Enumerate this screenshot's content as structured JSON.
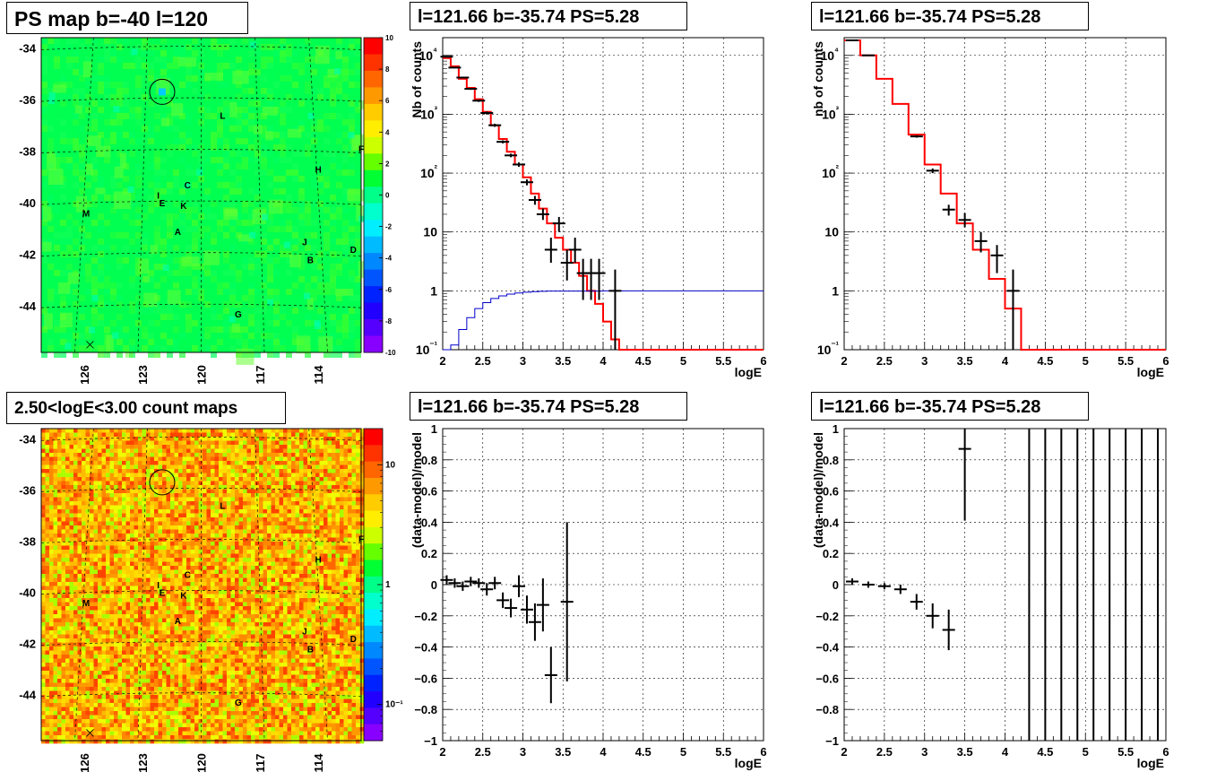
{
  "panel_titles": {
    "map1": "PS map b=-40 l=120",
    "map2": "2.50<logE<3.00 count maps",
    "spec1": "l=121.66 b=-35.74 PS=5.28",
    "spec2": "l=121.66 b=-35.74 PS=5.28",
    "res1": "l=121.66 b=-35.74 PS=5.28",
    "res2": "l=121.66 b=-35.74 PS=5.28"
  },
  "chart_data": [
    {
      "id": "map1",
      "type": "heatmap",
      "title": "PS map b=-40 l=120",
      "ytick_labels": [
        "-34",
        "-36",
        "-38",
        "-40",
        "-42",
        "-44"
      ],
      "yticks": [
        -34,
        -36,
        -38,
        -40,
        -42,
        -44
      ],
      "xtick_labels": [
        "126",
        "123",
        "120",
        "117",
        "114"
      ],
      "xticks": [
        126,
        123,
        120,
        117,
        114
      ],
      "ylim": [
        -45.8,
        -33.6
      ],
      "xlim": [
        128.2,
        111.8
      ],
      "colorbar": {
        "labels": [
          "10",
          "8",
          "6",
          "4",
          "2",
          "0",
          "-2",
          "-4",
          "-6",
          "-8",
          "-10"
        ],
        "range": [
          -10,
          10
        ],
        "scale": "linear"
      },
      "circle": {
        "l": 122,
        "b": -35.7
      },
      "sources": [
        {
          "name": "L",
          "l": 118.9,
          "b": -36.6
        },
        {
          "name": "F",
          "l": 111.8,
          "b": -37.9
        },
        {
          "name": "H",
          "l": 114.0,
          "b": -38.7
        },
        {
          "name": "C",
          "l": 120.7,
          "b": -39.3
        },
        {
          "name": "I",
          "l": 122.2,
          "b": -39.7
        },
        {
          "name": "E",
          "l": 122.0,
          "b": -40.0
        },
        {
          "name": "K",
          "l": 120.9,
          "b": -40.1
        },
        {
          "name": "M",
          "l": 125.9,
          "b": -40.4
        },
        {
          "name": "A",
          "l": 121.2,
          "b": -41.1
        },
        {
          "name": "J",
          "l": 114.7,
          "b": -41.5
        },
        {
          "name": "D",
          "l": 112.2,
          "b": -41.8
        },
        {
          "name": "B",
          "l": 114.4,
          "b": -42.2
        },
        {
          "name": "G",
          "l": 118.1,
          "b": -44.3
        }
      ],
      "marker_x": {
        "l": 125.7,
        "b": -45.5
      }
    },
    {
      "id": "map2",
      "type": "heatmap",
      "title": "2.50<logE<3.00 count maps",
      "ytick_labels": [
        "-34",
        "-36",
        "-38",
        "-40",
        "-42",
        "-44"
      ],
      "yticks": [
        -34,
        -36,
        -38,
        -40,
        -42,
        -44
      ],
      "xtick_labels": [
        "126",
        "123",
        "120",
        "117",
        "114"
      ],
      "xticks": [
        126,
        123,
        120,
        117,
        114
      ],
      "ylim": [
        -45.8,
        -33.6
      ],
      "xlim": [
        128.2,
        111.8
      ],
      "colorbar": {
        "labels": [
          "10",
          "1",
          "10⁻¹"
        ],
        "values": [
          10,
          1,
          0.1
        ],
        "range": [
          0.05,
          20
        ],
        "scale": "log"
      },
      "circle": {
        "l": 122,
        "b": -35.7
      },
      "sources": [
        {
          "name": "L",
          "l": 118.9,
          "b": -36.6
        },
        {
          "name": "F",
          "l": 111.8,
          "b": -37.9
        },
        {
          "name": "H",
          "l": 114.0,
          "b": -38.7
        },
        {
          "name": "C",
          "l": 120.7,
          "b": -39.3
        },
        {
          "name": "I",
          "l": 122.2,
          "b": -39.7
        },
        {
          "name": "E",
          "l": 122.0,
          "b": -40.0
        },
        {
          "name": "K",
          "l": 120.9,
          "b": -40.1
        },
        {
          "name": "M",
          "l": 125.9,
          "b": -40.4
        },
        {
          "name": "A",
          "l": 121.2,
          "b": -41.1
        },
        {
          "name": "J",
          "l": 114.7,
          "b": -41.5
        },
        {
          "name": "D",
          "l": 112.2,
          "b": -41.8
        },
        {
          "name": "B",
          "l": 114.4,
          "b": -42.2
        },
        {
          "name": "G",
          "l": 118.1,
          "b": -44.3
        }
      ],
      "marker_x": {
        "l": 125.7,
        "b": -45.5
      }
    },
    {
      "id": "spec1",
      "type": "line",
      "title": "l=121.66 b=-35.74 PS=5.28",
      "xlabel": "logE",
      "ylabel": "Nb of counts",
      "xlim": [
        2,
        6
      ],
      "ylim": [
        0.1,
        20000
      ],
      "yscale": "log",
      "grid": true,
      "xtick_labels": [
        "2",
        "2.5",
        "3",
        "3.5",
        "4",
        "4.5",
        "5",
        "5.5",
        "6"
      ],
      "ytick_labels": [
        "10⁻¹",
        "1",
        "10",
        "10²",
        "10³",
        "10⁴"
      ],
      "series": [
        {
          "color": "#ff0000",
          "style": "step",
          "x": [
            2.0,
            2.1,
            2.2,
            2.3,
            2.4,
            2.5,
            2.6,
            2.7,
            2.8,
            2.9,
            3.0,
            3.1,
            3.2,
            3.3,
            3.4,
            3.5,
            3.6,
            3.7,
            3.8,
            3.9,
            4.0,
            4.1,
            4.2,
            6.0
          ],
          "values": [
            9000,
            6500,
            4000,
            2800,
            1800,
            1100,
            650,
            380,
            230,
            140,
            85,
            45,
            25,
            14,
            8,
            5,
            3,
            1.8,
            1,
            0.6,
            0.3,
            0.15,
            0.1,
            0.1
          ]
        },
        {
          "color": "#0000cc",
          "style": "step",
          "x": [
            2.0,
            2.1,
            2.2,
            2.3,
            2.4,
            2.5,
            2.6,
            2.7,
            2.8,
            2.9,
            3.0,
            3.1,
            3.2,
            3.3,
            4.0,
            6.0
          ],
          "values": [
            0.07,
            0.12,
            0.22,
            0.35,
            0.5,
            0.63,
            0.74,
            0.82,
            0.88,
            0.92,
            0.95,
            0.97,
            0.98,
            0.99,
            1,
            1
          ]
        },
        {
          "color": "#000000",
          "style": "points",
          "points": [
            {
              "x": 2.05,
              "y": 9500,
              "ylo": 9300,
              "yhi": 9700
            },
            {
              "x": 2.15,
              "y": 6200,
              "ylo": 6050,
              "yhi": 6350
            },
            {
              "x": 2.25,
              "y": 4200,
              "ylo": 4080,
              "yhi": 4320
            },
            {
              "x": 2.35,
              "y": 2700,
              "ylo": 2600,
              "yhi": 2800
            },
            {
              "x": 2.45,
              "y": 1700,
              "ylo": 1620,
              "yhi": 1780
            },
            {
              "x": 2.55,
              "y": 1050,
              "ylo": 990,
              "yhi": 1110
            },
            {
              "x": 2.65,
              "y": 650,
              "ylo": 610,
              "yhi": 690
            },
            {
              "x": 2.75,
              "y": 340,
              "ylo": 320,
              "yhi": 360
            },
            {
              "x": 2.85,
              "y": 200,
              "ylo": 186,
              "yhi": 214
            },
            {
              "x": 2.95,
              "y": 140,
              "ylo": 128,
              "yhi": 152
            },
            {
              "x": 3.05,
              "y": 70,
              "ylo": 62,
              "yhi": 78
            },
            {
              "x": 3.15,
              "y": 35,
              "ylo": 29,
              "yhi": 41
            },
            {
              "x": 3.25,
              "y": 20,
              "ylo": 16,
              "yhi": 25
            },
            {
              "x": 3.35,
              "y": 5,
              "ylo": 3,
              "yhi": 8
            },
            {
              "x": 3.45,
              "y": 14,
              "ylo": 10,
              "yhi": 18
            },
            {
              "x": 3.55,
              "y": 3,
              "ylo": 1.5,
              "yhi": 5
            },
            {
              "x": 3.65,
              "y": 5,
              "ylo": 3,
              "yhi": 8
            },
            {
              "x": 3.75,
              "y": 2,
              "ylo": 0.7,
              "yhi": 3.5
            },
            {
              "x": 3.85,
              "y": 2,
              "ylo": 0.7,
              "yhi": 3.5
            },
            {
              "x": 3.95,
              "y": 2,
              "ylo": 0.7,
              "yhi": 3.5
            },
            {
              "x": 4.15,
              "y": 1,
              "ylo": 0.1,
              "yhi": 2.3
            }
          ]
        }
      ]
    },
    {
      "id": "spec2",
      "type": "line",
      "title": "l=121.66 b=-35.74 PS=5.28",
      "xlabel": "logE",
      "ylabel": "nb of counts",
      "xlim": [
        2,
        6
      ],
      "ylim": [
        0.1,
        20000
      ],
      "yscale": "log",
      "grid": true,
      "xtick_labels": [
        "2",
        "2.5",
        "3",
        "3.5",
        "4",
        "4.5",
        "5",
        "5.5",
        "6"
      ],
      "ytick_labels": [
        "10⁻¹",
        "1",
        "10",
        "10²",
        "10³",
        "10⁴"
      ],
      "series": [
        {
          "color": "#ff0000",
          "style": "step",
          "x": [
            2.0,
            2.2,
            2.4,
            2.6,
            2.8,
            3.0,
            3.2,
            3.4,
            3.6,
            3.8,
            4.0,
            4.2,
            6.0
          ],
          "values": [
            18000,
            10000,
            4000,
            1500,
            450,
            140,
            45,
            14,
            5,
            1.6,
            0.5,
            0.1,
            0.1
          ]
        },
        {
          "color": "#000000",
          "style": "points",
          "points": [
            {
              "x": 2.1,
              "y": 18000,
              "ylo": 17700,
              "yhi": 18300
            },
            {
              "x": 2.3,
              "y": 10000,
              "ylo": 9800,
              "yhi": 10200
            },
            {
              "x": 2.9,
              "y": 420,
              "ylo": 400,
              "yhi": 440
            },
            {
              "x": 3.1,
              "y": 110,
              "ylo": 100,
              "yhi": 120
            },
            {
              "x": 3.3,
              "y": 24,
              "ylo": 19,
              "yhi": 29
            },
            {
              "x": 3.5,
              "y": 16,
              "ylo": 12,
              "yhi": 21
            },
            {
              "x": 3.7,
              "y": 7,
              "ylo": 4.5,
              "yhi": 10
            },
            {
              "x": 3.9,
              "y": 4,
              "ylo": 2,
              "yhi": 6
            },
            {
              "x": 4.1,
              "y": 1,
              "ylo": 0.1,
              "yhi": 2.3
            }
          ]
        }
      ]
    },
    {
      "id": "res1",
      "type": "scatter",
      "title": "l=121.66 b=-35.74 PS=5.28",
      "xlabel": "logE",
      "ylabel": "(data-model)/model",
      "xlim": [
        2,
        6
      ],
      "ylim": [
        -1,
        1
      ],
      "grid": true,
      "xtick_labels": [
        "2",
        "2.5",
        "3",
        "3.5",
        "4",
        "4.5",
        "5",
        "5.5",
        "6"
      ],
      "ytick_labels": [
        "1",
        "0.8",
        "0.6",
        "0.4",
        "0.2",
        "0",
        "−0.2",
        "−0.4",
        "−0.6",
        "−0.8",
        "−1"
      ],
      "yticks": [
        1,
        0.8,
        0.6,
        0.4,
        0.2,
        0,
        -0.2,
        -0.4,
        -0.6,
        -0.8,
        -1
      ],
      "series": [
        {
          "color": "#000000",
          "style": "points",
          "points": [
            {
              "x": 2.05,
              "y": 0.03,
              "ylo": 0.0,
              "yhi": 0.06
            },
            {
              "x": 2.15,
              "y": 0.01,
              "ylo": -0.02,
              "yhi": 0.04
            },
            {
              "x": 2.25,
              "y": -0.01,
              "ylo": -0.04,
              "yhi": 0.02
            },
            {
              "x": 2.35,
              "y": 0.02,
              "ylo": -0.01,
              "yhi": 0.05
            },
            {
              "x": 2.45,
              "y": 0.01,
              "ylo": -0.02,
              "yhi": 0.04
            },
            {
              "x": 2.55,
              "y": -0.03,
              "ylo": -0.07,
              "yhi": 0.01
            },
            {
              "x": 2.65,
              "y": 0.01,
              "ylo": -0.03,
              "yhi": 0.05
            },
            {
              "x": 2.75,
              "y": -0.1,
              "ylo": -0.15,
              "yhi": -0.05
            },
            {
              "x": 2.85,
              "y": -0.15,
              "ylo": -0.21,
              "yhi": -0.09
            },
            {
              "x": 2.95,
              "y": -0.01,
              "ylo": -0.08,
              "yhi": 0.06
            },
            {
              "x": 3.05,
              "y": -0.16,
              "ylo": -0.25,
              "yhi": -0.07
            },
            {
              "x": 3.15,
              "y": -0.24,
              "ylo": -0.36,
              "yhi": -0.12
            },
            {
              "x": 3.25,
              "y": -0.13,
              "ylo": -0.3,
              "yhi": 0.04
            },
            {
              "x": 3.35,
              "y": -0.58,
              "ylo": -0.76,
              "yhi": -0.4
            },
            {
              "x": 3.55,
              "y": -0.11,
              "ylo": -0.62,
              "yhi": 0.4
            }
          ]
        }
      ]
    },
    {
      "id": "res2",
      "type": "scatter",
      "title": "l=121.66 b=-35.74 PS=5.28",
      "xlabel": "logE",
      "ylabel": "(data-model)/model",
      "xlim": [
        2,
        6
      ],
      "ylim": [
        -1,
        1
      ],
      "grid": true,
      "xtick_labels": [
        "2",
        "2.5",
        "3",
        "3.5",
        "4",
        "4.5",
        "5",
        "5.5",
        "6"
      ],
      "ytick_labels": [
        "1",
        "0.8",
        "0.6",
        "0.4",
        "0.2",
        "0",
        "−0.2",
        "−0.4",
        "−0.6",
        "−0.8",
        "−1"
      ],
      "yticks": [
        1,
        0.8,
        0.6,
        0.4,
        0.2,
        0,
        -0.2,
        -0.4,
        -0.6,
        -0.8,
        -1
      ],
      "series": [
        {
          "color": "#000000",
          "style": "points",
          "points": [
            {
              "x": 2.1,
              "y": 0.02,
              "ylo": 0.0,
              "yhi": 0.04
            },
            {
              "x": 2.3,
              "y": 0.0,
              "ylo": -0.02,
              "yhi": 0.02
            },
            {
              "x": 2.5,
              "y": -0.01,
              "ylo": -0.03,
              "yhi": 0.01
            },
            {
              "x": 2.7,
              "y": -0.03,
              "ylo": -0.06,
              "yhi": 0.0
            },
            {
              "x": 2.9,
              "y": -0.11,
              "ylo": -0.16,
              "yhi": -0.06
            },
            {
              "x": 3.1,
              "y": -0.2,
              "ylo": -0.28,
              "yhi": -0.12
            },
            {
              "x": 3.3,
              "y": -0.29,
              "ylo": -0.42,
              "yhi": -0.16
            },
            {
              "x": 3.5,
              "y": 0.87,
              "ylo": 0.41,
              "yhi": 1.0
            }
          ]
        },
        {
          "color": "#000000",
          "style": "vlines",
          "x": [
            4.3,
            4.5,
            4.7,
            4.9,
            5.1,
            5.3,
            5.5,
            5.7,
            5.9
          ]
        }
      ]
    }
  ]
}
